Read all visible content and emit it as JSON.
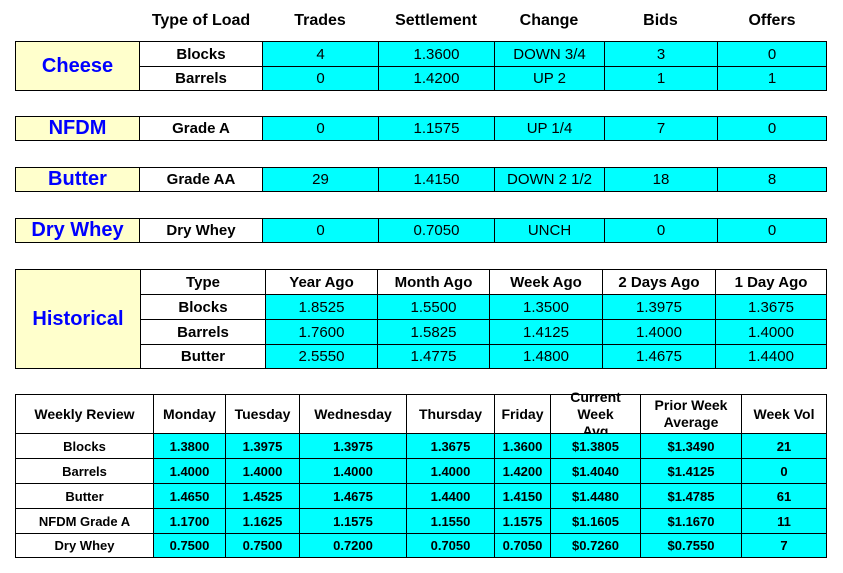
{
  "header": {
    "columns": [
      "Type of Load",
      "Trades",
      "Settlement",
      "Change",
      "Bids",
      "Offers"
    ]
  },
  "cheese": {
    "label": "Cheese",
    "rows": [
      {
        "type": "Blocks",
        "trades": "4",
        "settlement": "1.3600",
        "change": "DOWN 3/4",
        "bids": "3",
        "offers": "0"
      },
      {
        "type": "Barrels",
        "trades": "0",
        "settlement": "1.4200",
        "change": "UP 2",
        "bids": "1",
        "offers": "1"
      }
    ]
  },
  "nfdm": {
    "label": "NFDM",
    "row": {
      "type": "Grade A",
      "trades": "0",
      "settlement": "1.1575",
      "change": "UP 1/4",
      "bids": "7",
      "offers": "0"
    }
  },
  "butter": {
    "label": "Butter",
    "row": {
      "type": "Grade AA",
      "trades": "29",
      "settlement": "1.4150",
      "change": "DOWN 2 1/2",
      "bids": "18",
      "offers": "8"
    }
  },
  "dry_whey": {
    "label": "Dry Whey",
    "row": {
      "type": "Dry Whey",
      "trades": "0",
      "settlement": "0.7050",
      "change": "UNCH",
      "bids": "0",
      "offers": "0"
    }
  },
  "historical": {
    "label": "Historical",
    "columns": [
      "Type",
      "Year Ago",
      "Month Ago",
      "Week Ago",
      "2 Days Ago",
      "1 Day Ago"
    ],
    "rows": [
      {
        "type": "Blocks",
        "values": [
          "1.8525",
          "1.5500",
          "1.3500",
          "1.3975",
          "1.3675"
        ]
      },
      {
        "type": "Barrels",
        "values": [
          "1.7600",
          "1.5825",
          "1.4125",
          "1.4000",
          "1.4000"
        ]
      },
      {
        "type": "Butter",
        "values": [
          "2.5550",
          "1.4775",
          "1.4800",
          "1.4675",
          "1.4400"
        ]
      }
    ]
  },
  "weekly": {
    "columns": [
      "Weekly Review",
      "Monday",
      "Tuesday",
      "Wednesday",
      "Thursday",
      "Friday",
      "Current Week Avg",
      "Prior Week Average",
      "Week Vol"
    ],
    "rows": [
      {
        "label": "Blocks",
        "values": [
          "1.3800",
          "1.3975",
          "1.3975",
          "1.3675",
          "1.3600",
          "$1.3805",
          "$1.3490",
          "21"
        ]
      },
      {
        "label": "Barrels",
        "values": [
          "1.4000",
          "1.4000",
          "1.4000",
          "1.4000",
          "1.4200",
          "$1.4040",
          "$1.4125",
          "0"
        ]
      },
      {
        "label": "Butter",
        "values": [
          "1.4650",
          "1.4525",
          "1.4675",
          "1.4400",
          "1.4150",
          "$1.4480",
          "$1.4785",
          "61"
        ]
      },
      {
        "label": "NFDM Grade A",
        "values": [
          "1.1700",
          "1.1625",
          "1.1575",
          "1.1550",
          "1.1575",
          "$1.1605",
          "$1.1670",
          "11"
        ]
      },
      {
        "label": "Dry Whey",
        "values": [
          "0.7500",
          "0.7500",
          "0.7200",
          "0.7050",
          "0.7050",
          "$0.7260",
          "$0.7550",
          "7"
        ]
      }
    ]
  }
}
